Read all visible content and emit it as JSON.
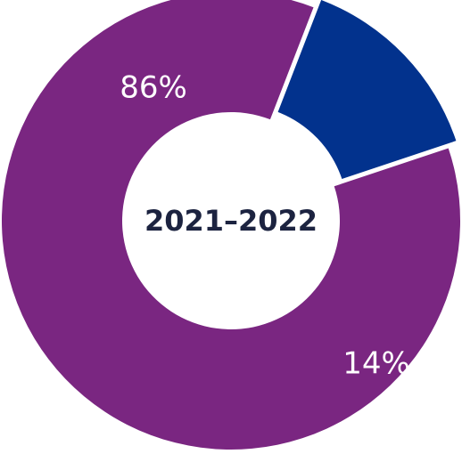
{
  "chart_data": {
    "type": "pie",
    "variant": "donut",
    "center_label": "2021–2022",
    "slices": [
      {
        "value": 86,
        "label": "86%",
        "color": "#7a2681",
        "exploded": false
      },
      {
        "value": 14,
        "label": "14%",
        "color": "#02328d",
        "exploded": true
      }
    ]
  }
}
